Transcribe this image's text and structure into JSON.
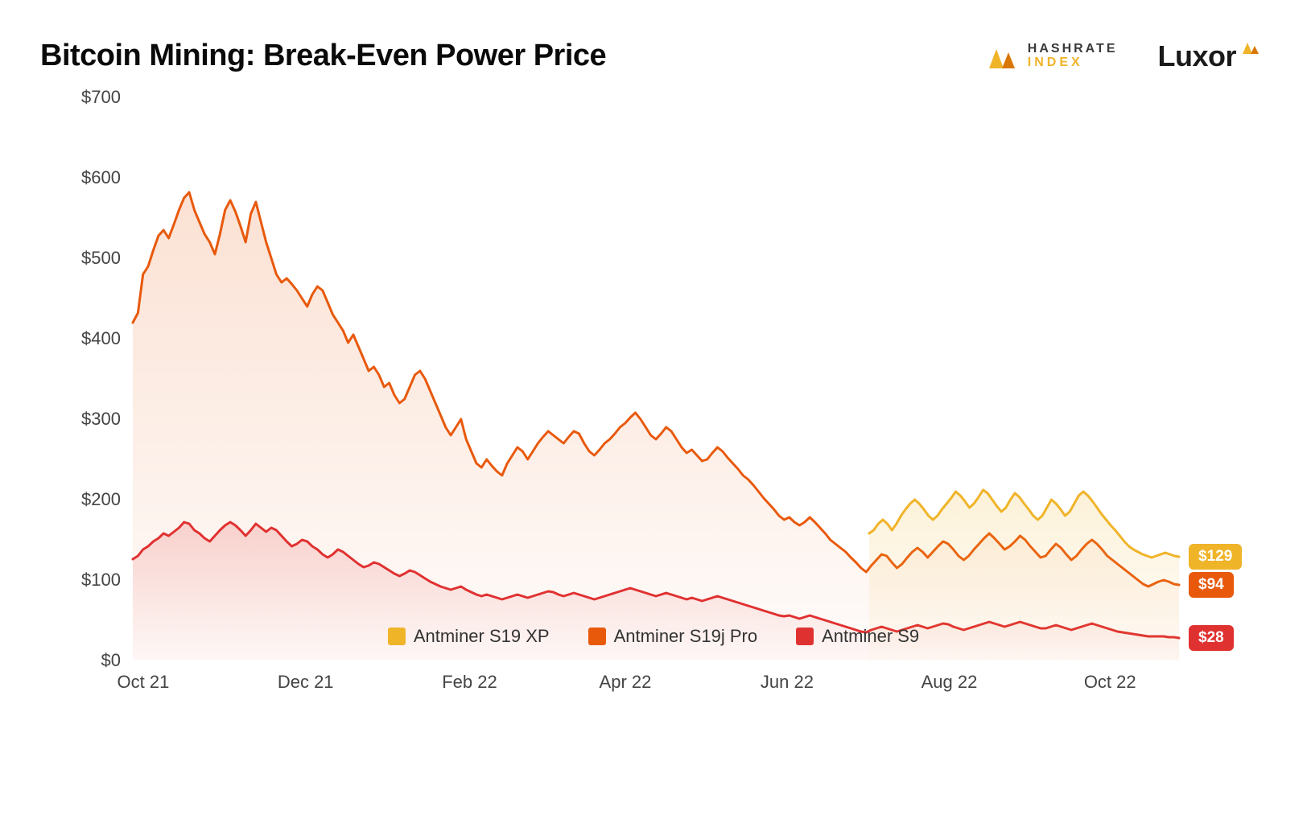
{
  "title": "Bitcoin Mining: Break-Even Power Price",
  "brand": {
    "hashrate_l1": "HASHRATE",
    "hashrate_l2": "INDEX",
    "luxor": "Luxor"
  },
  "chart": {
    "type": "area",
    "background_color": "#ffffff",
    "grid_on": false,
    "title_fontsize": 38,
    "label_fontsize": 22,
    "tick_fontsize": 22,
    "line_width": 3,
    "area_opacity": 0.18,
    "ylim": [
      0,
      700
    ],
    "ytick_step": 100,
    "y_prefix": "$",
    "yticks": [
      "$0",
      "$100",
      "$200",
      "$300",
      "$400",
      "$500",
      "$600",
      "$700"
    ],
    "x_domain": [
      0,
      395
    ],
    "xticks": [
      {
        "x": 0,
        "label": "Oct 21"
      },
      {
        "x": 61,
        "label": "Dec 21"
      },
      {
        "x": 123,
        "label": "Feb 22"
      },
      {
        "x": 182,
        "label": "Apr 22"
      },
      {
        "x": 243,
        "label": "Jun 22"
      },
      {
        "x": 304,
        "label": "Aug 22"
      },
      {
        "x": 365,
        "label": "Oct 22"
      }
    ],
    "legend": [
      {
        "label": "Antminer S19 XP",
        "color": "#f0b429"
      },
      {
        "label": "Antminer S19j Pro",
        "color": "#e8590c"
      },
      {
        "label": "Antminer S9",
        "color": "#e03131"
      }
    ],
    "series": [
      {
        "name": "Antminer S19j Pro",
        "color": "#e8590c",
        "fill_color": "#e8590c",
        "end_label": "$94",
        "badge_bg": "#e8590c",
        "x_start": 0,
        "data": [
          420,
          432,
          480,
          490,
          510,
          528,
          535,
          525,
          542,
          560,
          575,
          582,
          560,
          545,
          530,
          520,
          505,
          530,
          560,
          572,
          558,
          540,
          520,
          555,
          570,
          545,
          520,
          500,
          480,
          470,
          475,
          468,
          460,
          450,
          440,
          455,
          465,
          460,
          445,
          430,
          420,
          410,
          395,
          405,
          390,
          375,
          360,
          365,
          355,
          340,
          345,
          330,
          320,
          325,
          340,
          355,
          360,
          350,
          335,
          320,
          305,
          290,
          280,
          290,
          300,
          275,
          260,
          245,
          240,
          250,
          242,
          235,
          230,
          245,
          255,
          265,
          260,
          250,
          260,
          270,
          278,
          285,
          280,
          275,
          270,
          278,
          285,
          282,
          270,
          260,
          255,
          262,
          270,
          275,
          282,
          290,
          295,
          302,
          308,
          300,
          290,
          280,
          275,
          282,
          290,
          285,
          275,
          265,
          258,
          262,
          255,
          248,
          250,
          258,
          265,
          260,
          252,
          245,
          238,
          230,
          225,
          218,
          210,
          202,
          195,
          188,
          180,
          175,
          178,
          172,
          168,
          172,
          178,
          172,
          165,
          158,
          150,
          145,
          140,
          135,
          128,
          122,
          115,
          110,
          118,
          125,
          132,
          130,
          122,
          115,
          120,
          128,
          135,
          140,
          135,
          128,
          135,
          142,
          148,
          145,
          138,
          130,
          125,
          130,
          138,
          145,
          152,
          158,
          152,
          145,
          138,
          142,
          148,
          155,
          150,
          142,
          135,
          128,
          130,
          138,
          145,
          140,
          132,
          125,
          130,
          138,
          145,
          150,
          145,
          138,
          130,
          125,
          120,
          115,
          110,
          105,
          100,
          95,
          92,
          95,
          98,
          100,
          98,
          95,
          94
        ]
      },
      {
        "name": "Antminer S9",
        "color": "#e03131",
        "fill_color": "#e03131",
        "end_label": "$28",
        "badge_bg": "#e03131",
        "x_start": 0,
        "data": [
          126,
          130,
          138,
          142,
          148,
          152,
          158,
          155,
          160,
          165,
          172,
          170,
          162,
          158,
          152,
          148,
          155,
          162,
          168,
          172,
          168,
          162,
          155,
          162,
          170,
          165,
          160,
          165,
          162,
          155,
          148,
          142,
          145,
          150,
          148,
          142,
          138,
          132,
          128,
          132,
          138,
          135,
          130,
          125,
          120,
          116,
          118,
          122,
          120,
          116,
          112,
          108,
          105,
          108,
          112,
          110,
          106,
          102,
          98,
          95,
          92,
          90,
          88,
          90,
          92,
          88,
          85,
          82,
          80,
          82,
          80,
          78,
          76,
          78,
          80,
          82,
          80,
          78,
          80,
          82,
          84,
          86,
          85,
          82,
          80,
          82,
          84,
          82,
          80,
          78,
          76,
          78,
          80,
          82,
          84,
          86,
          88,
          90,
          88,
          86,
          84,
          82,
          80,
          82,
          84,
          82,
          80,
          78,
          76,
          78,
          76,
          74,
          76,
          78,
          80,
          78,
          76,
          74,
          72,
          70,
          68,
          66,
          64,
          62,
          60,
          58,
          56,
          55,
          56,
          54,
          52,
          54,
          56,
          54,
          52,
          50,
          48,
          46,
          44,
          42,
          40,
          38,
          36,
          35,
          38,
          40,
          42,
          40,
          38,
          36,
          38,
          40,
          42,
          44,
          42,
          40,
          42,
          44,
          46,
          45,
          42,
          40,
          38,
          40,
          42,
          44,
          46,
          48,
          46,
          44,
          42,
          44,
          46,
          48,
          46,
          44,
          42,
          40,
          40,
          42,
          44,
          42,
          40,
          38,
          40,
          42,
          44,
          46,
          44,
          42,
          40,
          38,
          36,
          35,
          34,
          33,
          32,
          31,
          30,
          30,
          30,
          30,
          29,
          29,
          28
        ]
      },
      {
        "name": "Antminer S19 XP",
        "color": "#f0b429",
        "fill_color": "#f0b429",
        "end_label": "$129",
        "badge_bg": "#f0b429",
        "x_start": 278,
        "data": [
          158,
          162,
          170,
          175,
          170,
          162,
          170,
          180,
          188,
          195,
          200,
          195,
          188,
          180,
          175,
          180,
          188,
          195,
          202,
          210,
          205,
          198,
          190,
          195,
          203,
          212,
          208,
          200,
          192,
          185,
          190,
          200,
          208,
          203,
          195,
          188,
          180,
          175,
          180,
          190,
          200,
          195,
          188,
          180,
          185,
          195,
          205,
          210,
          205,
          198,
          190,
          182,
          175,
          168,
          162,
          155,
          148,
          142,
          138,
          135,
          132,
          130,
          128,
          130,
          132,
          134,
          132,
          130,
          129
        ]
      }
    ]
  }
}
